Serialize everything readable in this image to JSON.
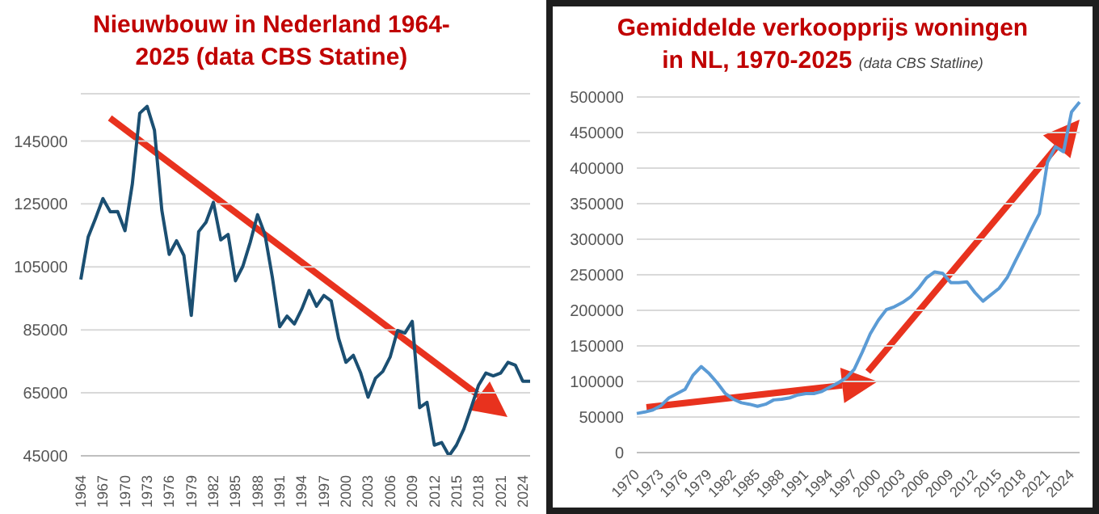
{
  "chart_data": [
    {
      "type": "line",
      "title": "Nieuwbouw in Nederland 1964-2025 (data CBS Statine)",
      "categories": [
        "1964",
        null,
        null,
        "1967",
        null,
        null,
        "1970",
        null,
        null,
        "1973",
        null,
        null,
        "1976",
        null,
        null,
        "1979",
        null,
        null,
        "1982",
        null,
        null,
        "1985",
        null,
        null,
        "1988",
        null,
        null,
        "1991",
        null,
        null,
        "1994",
        null,
        null,
        "1997",
        null,
        null,
        "2000",
        null,
        null,
        "2003",
        null,
        null,
        "2006",
        null,
        null,
        "2009",
        null,
        null,
        "2012",
        null,
        null,
        "2015",
        null,
        null,
        "2018",
        null,
        null,
        "2021",
        null,
        null,
        "2024",
        null
      ],
      "series": [
        {
          "color": "#1b4f72",
          "values": [
            101000,
            114500,
            120400,
            126700,
            122500,
            122600,
            116500,
            131400,
            153800,
            156000,
            148400,
            123000,
            109000,
            113300,
            108600,
            89600,
            116200,
            119200,
            125500,
            113600,
            115300,
            100600,
            105200,
            112800,
            121600,
            115300,
            101800,
            86000,
            89400,
            86900,
            91600,
            97500,
            92500,
            95900,
            94200,
            82300,
            74700,
            76900,
            71300,
            63600,
            69600,
            71800,
            76400,
            84800,
            84000,
            87700,
            60300,
            62000,
            48400,
            49200,
            45000,
            48400,
            53500,
            60300,
            67400,
            71300,
            70400,
            71300,
            74700,
            73800,
            68700,
            68700
          ]
        }
      ],
      "ylim": [
        45000,
        160000
      ],
      "yticks": [
        45000,
        65000,
        85000,
        105000,
        125000,
        145000
      ],
      "grid": "y"
    },
    {
      "type": "line",
      "title": "Gemiddelde verkoopprijs woningen in NL, 1970-2025",
      "subtitle": "(data CBS Statline)",
      "categories": [
        "1970",
        null,
        null,
        "1973",
        null,
        null,
        "1976",
        null,
        null,
        "1979",
        null,
        null,
        "1982",
        null,
        null,
        "1985",
        null,
        null,
        "1988",
        null,
        null,
        "1991",
        null,
        null,
        "1994",
        null,
        null,
        "1997",
        null,
        null,
        "2000",
        null,
        null,
        "2003",
        null,
        null,
        "2006",
        null,
        null,
        "2009",
        null,
        null,
        "2012",
        null,
        null,
        "2015",
        null,
        null,
        "2018",
        null,
        null,
        "2021",
        null,
        null,
        "2024",
        null
      ],
      "series": [
        {
          "color": "#5b9bd5",
          "values": [
            55000,
            57000,
            60000,
            66000,
            77000,
            83000,
            89000,
            109000,
            121000,
            111000,
            98000,
            83000,
            75000,
            70000,
            68000,
            65000,
            68000,
            74000,
            75000,
            77000,
            81000,
            83000,
            83000,
            86000,
            92000,
            98000,
            105000,
            117000,
            141000,
            167000,
            186000,
            201000,
            205000,
            211000,
            219000,
            231000,
            246000,
            254000,
            252000,
            239000,
            239000,
            240000,
            225000,
            213000,
            222000,
            231000,
            246000,
            269000,
            291000,
            314000,
            336000,
            408000,
            430000,
            423000,
            479000,
            493000
          ]
        }
      ],
      "ylim": [
        0,
        500000
      ],
      "yticks": [
        0,
        50000,
        100000,
        150000,
        200000,
        250000,
        300000,
        350000,
        400000,
        450000,
        500000
      ],
      "grid": "y"
    }
  ]
}
